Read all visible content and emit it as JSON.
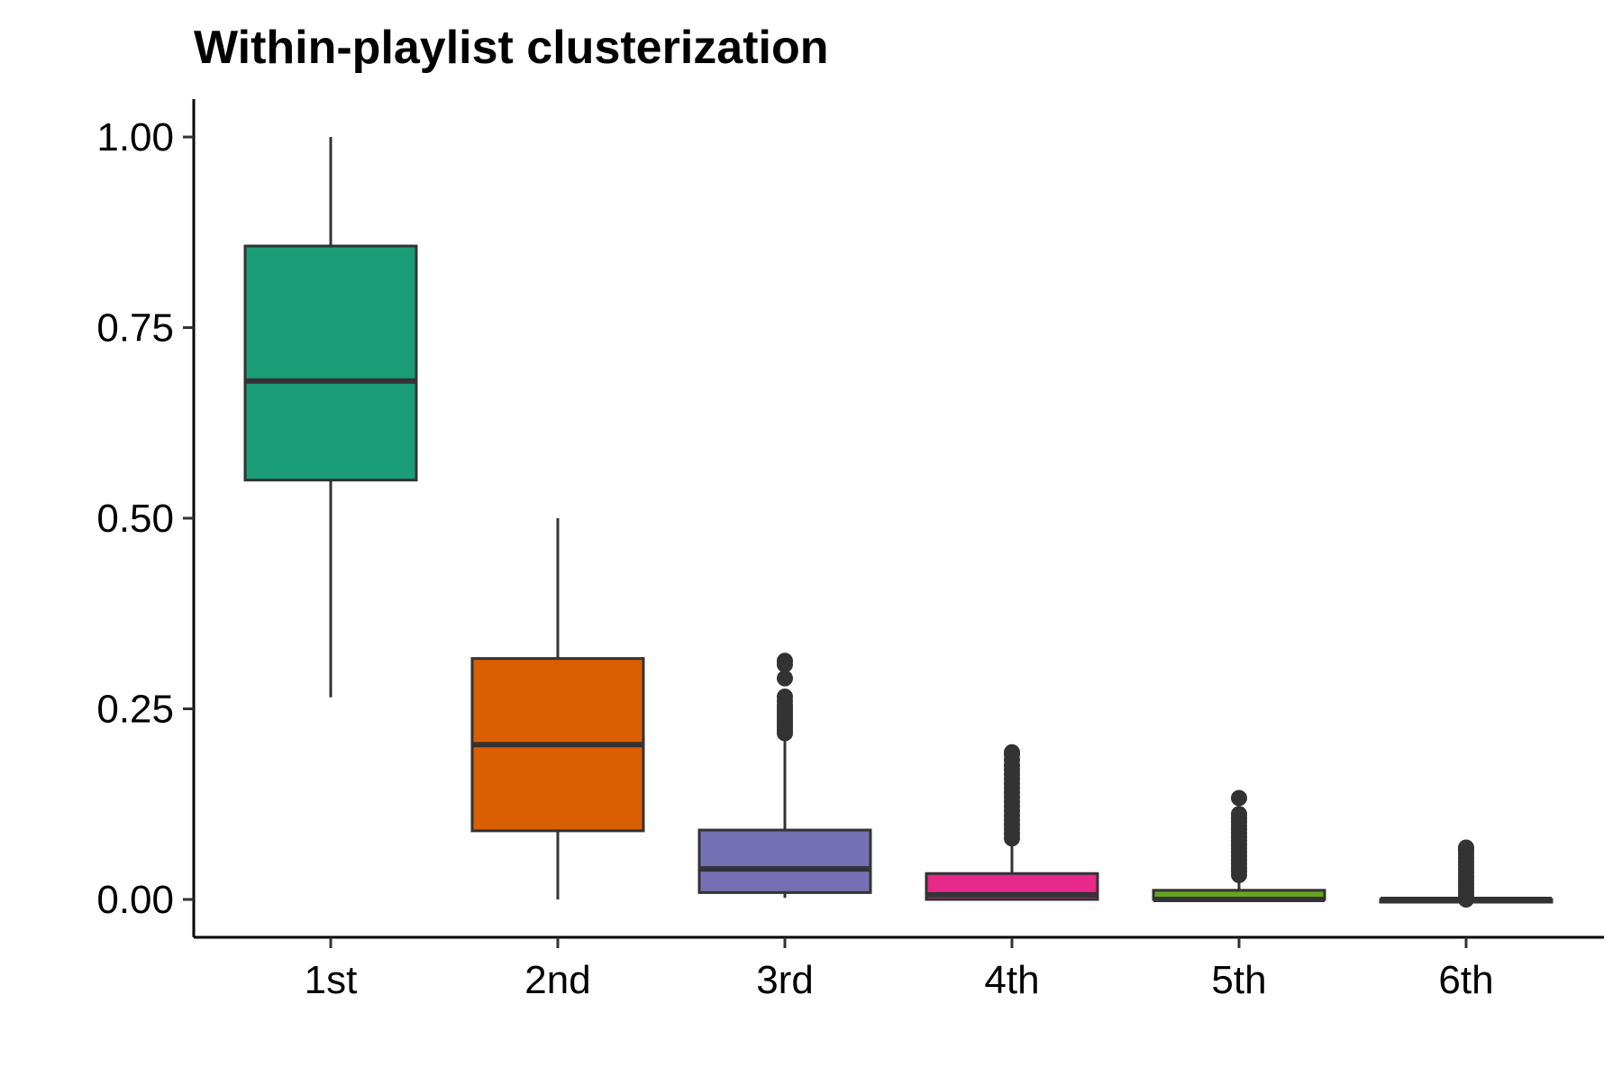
{
  "chart_data": {
    "type": "boxplot",
    "title": "Within-playlist clusterization",
    "xlabel": "",
    "ylabel": "",
    "categories": [
      "1st",
      "2nd",
      "3rd",
      "4th",
      "5th",
      "6th"
    ],
    "ylim": [
      -0.05,
      1.05
    ],
    "yticks": [
      0.0,
      0.25,
      0.5,
      0.75,
      1.0
    ],
    "ytick_labels": [
      "0.00",
      "0.25",
      "0.50",
      "0.75",
      "1.00"
    ],
    "grid": false,
    "legend": "none",
    "series": [
      {
        "category": "1st",
        "color": "#1b9e77",
        "whisker_low": 0.265,
        "q1": 0.55,
        "median": 0.68,
        "q3": 0.857,
        "whisker_high": 1.0,
        "outliers": []
      },
      {
        "category": "2nd",
        "color": "#d95f02",
        "whisker_low": 0.0,
        "q1": 0.09,
        "median": 0.203,
        "q3": 0.316,
        "whisker_high": 0.5,
        "outliers": []
      },
      {
        "category": "3rd",
        "color": "#7570b3",
        "whisker_low": 0.002,
        "q1": 0.009,
        "median": 0.04,
        "q3": 0.091,
        "whisker_high": 0.213,
        "outliers": [
          0.218,
          0.222,
          0.226,
          0.23,
          0.234,
          0.238,
          0.242,
          0.246,
          0.25,
          0.254,
          0.26,
          0.266,
          0.29,
          0.308,
          0.313
        ]
      },
      {
        "category": "4th",
        "color": "#e7298a",
        "whisker_low": 0.0,
        "q1": 0.0,
        "median": 0.006,
        "q3": 0.034,
        "whisker_high": 0.075,
        "outliers": [
          0.08,
          0.086,
          0.092,
          0.098,
          0.104,
          0.11,
          0.116,
          0.122,
          0.128,
          0.134,
          0.14,
          0.146,
          0.152,
          0.158,
          0.164,
          0.17,
          0.176,
          0.183,
          0.19,
          0.193
        ]
      },
      {
        "category": "5th",
        "color": "#66a61e",
        "whisker_low": 0.0,
        "q1": 0.0,
        "median": 0.0,
        "q3": 0.012,
        "whisker_high": 0.028,
        "outliers": [
          0.032,
          0.037,
          0.042,
          0.047,
          0.052,
          0.057,
          0.062,
          0.067,
          0.072,
          0.077,
          0.082,
          0.087,
          0.092,
          0.097,
          0.102,
          0.107,
          0.112,
          0.133
        ]
      },
      {
        "category": "6th",
        "color": "#e6ab02",
        "whisker_low": 0.0,
        "q1": 0.0,
        "median": 0.0,
        "q3": 0.0,
        "whisker_high": 0.0,
        "outliers": [
          0.0,
          0.005,
          0.01,
          0.015,
          0.02,
          0.025,
          0.03,
          0.035,
          0.04,
          0.045,
          0.05,
          0.055,
          0.06,
          0.065,
          0.068
        ]
      }
    ]
  }
}
